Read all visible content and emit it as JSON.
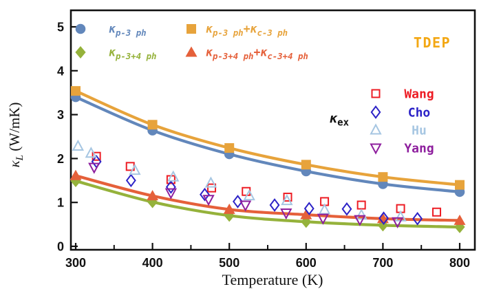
{
  "figure": {
    "background": "#ffffff",
    "axis_color": "#111111"
  },
  "chart_data": {
    "type": "line+scatter",
    "title": "",
    "xlabel": "Temperature (K)",
    "ylabel": "κL (W/mK)",
    "ylabel_parts": [
      {
        "t": "κ",
        "italic": true
      },
      {
        "t": "L",
        "italic": true,
        "sub": true
      },
      {
        "t": " (W/mK)"
      }
    ],
    "xlim": [
      294,
      820
    ],
    "ylim": [
      -0.08,
      5.38
    ],
    "x_major_ticks": [
      300,
      400,
      500,
      600,
      700,
      800
    ],
    "x_minor_ticks": [
      350,
      450,
      550,
      650,
      750
    ],
    "y_major_ticks": [
      0,
      1,
      2,
      3,
      4,
      5
    ],
    "grid": false,
    "legend_position": "upper-left-inside",
    "method_label": "TDEP",
    "method_label_color": "#f3a712",
    "exp_group_label": "κex",
    "exp_group_label_parts": [
      {
        "t": "κ",
        "italic": true
      },
      {
        "t": "ex",
        "sub": true
      }
    ],
    "tdep_series": [
      {
        "key": "p-3ph",
        "label_rich": "κ_{p-3 ph}",
        "marker": "circle",
        "color": "#6287bb",
        "x": [
          300,
          400,
          500,
          600,
          700,
          800
        ],
        "y": [
          3.4,
          2.64,
          2.1,
          1.71,
          1.42,
          1.24
        ]
      },
      {
        "key": "p-3ph-plus-c-3ph",
        "label_rich": "κ_{p-3 ph}+κ_{c-3 ph}",
        "marker": "square",
        "color": "#e7a33b",
        "x": [
          300,
          400,
          500,
          600,
          700,
          800
        ],
        "y": [
          3.54,
          2.77,
          2.24,
          1.86,
          1.58,
          1.4
        ]
      },
      {
        "key": "p-3+4ph",
        "label_rich": "κ_{p-3+4 ph}",
        "marker": "diamond",
        "color": "#95b23b",
        "x": [
          300,
          400,
          500,
          600,
          700,
          800
        ],
        "y": [
          1.49,
          1.01,
          0.7,
          0.56,
          0.48,
          0.44
        ]
      },
      {
        "key": "p-3+4ph-plus-c-3+4ph",
        "label_rich": "κ_{p-3+4 ph}+κ_{c-3+4 ph}",
        "marker": "triangle-up",
        "color": "#e5603a",
        "x": [
          300,
          400,
          500,
          600,
          700,
          800
        ],
        "y": [
          1.61,
          1.15,
          0.84,
          0.72,
          0.63,
          0.59
        ]
      }
    ],
    "experimental_series": [
      {
        "key": "wang",
        "name": "Wang",
        "marker": "square-open",
        "color": "#ed1c24",
        "points": [
          [
            327,
            2.05
          ],
          [
            371,
            1.82
          ],
          [
            424,
            1.52
          ],
          [
            477,
            1.33
          ],
          [
            522,
            1.25
          ],
          [
            576,
            1.12
          ],
          [
            624,
            1.02
          ],
          [
            672,
            0.94
          ],
          [
            723,
            0.86
          ],
          [
            770,
            0.78
          ]
        ]
      },
      {
        "key": "cho",
        "name": "Cho",
        "marker": "diamond-open",
        "color": "#2c22c7",
        "points": [
          [
            327,
            1.93
          ],
          [
            372,
            1.5
          ],
          [
            424,
            1.35
          ],
          [
            468,
            1.18
          ],
          [
            511,
            1.02
          ],
          [
            559,
            0.94
          ],
          [
            604,
            0.86
          ],
          [
            653,
            0.85
          ],
          [
            701,
            0.64
          ],
          [
            745,
            0.63
          ]
        ]
      },
      {
        "key": "hu",
        "name": "Hu",
        "marker": "triangle-up-open",
        "color": "#a6c6e2",
        "points": [
          [
            303,
            2.28
          ],
          [
            320,
            2.12
          ],
          [
            377,
            1.73
          ],
          [
            427,
            1.58
          ],
          [
            476,
            1.44
          ],
          [
            526,
            1.15
          ],
          [
            575,
            1.04
          ],
          [
            624,
            0.83
          ],
          [
            672,
            0.71
          ],
          [
            723,
            0.67
          ]
        ]
      },
      {
        "key": "yang",
        "name": "Yang",
        "marker": "triangle-down-open",
        "color": "#8e1f9e",
        "points": [
          [
            324,
            1.8
          ],
          [
            424,
            1.22
          ],
          [
            473,
            1.07
          ],
          [
            521,
            0.94
          ],
          [
            574,
            0.76
          ],
          [
            622,
            0.64
          ],
          [
            670,
            0.61
          ],
          [
            719,
            0.56
          ]
        ]
      }
    ]
  }
}
